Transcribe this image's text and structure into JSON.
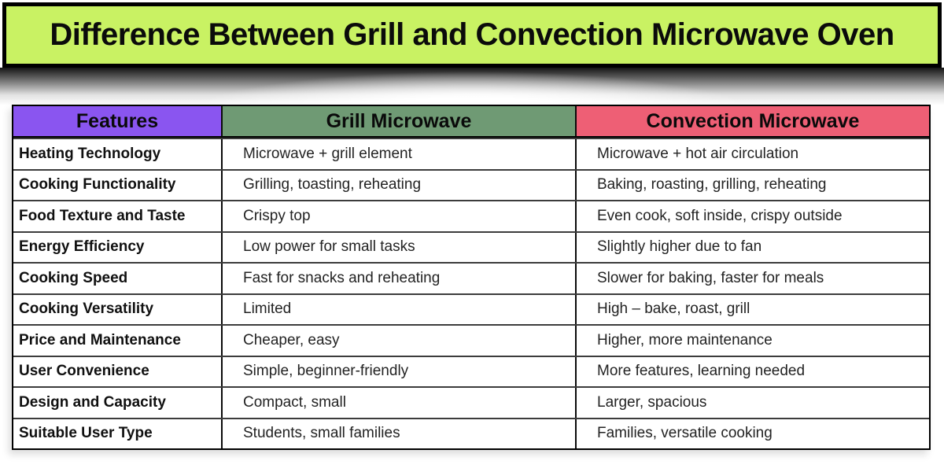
{
  "chart_data": {
    "type": "table",
    "title": "Difference Between Grill and Convection Microwave Oven",
    "columns": [
      "Features",
      "Grill Microwave",
      "Convection Microwave"
    ],
    "rows": [
      [
        "Heating Technology",
        "Microwave + grill element",
        "Microwave + hot air circulation"
      ],
      [
        "Cooking Functionality",
        "Grilling, toasting, reheating",
        "Baking, roasting, grilling, reheating"
      ],
      [
        "Food Texture and Taste",
        "Crispy top",
        "Even cook, soft inside, crispy outside"
      ],
      [
        "Energy Efficiency",
        "Low power for small tasks",
        "Slightly higher due to fan"
      ],
      [
        "Cooking Speed",
        "Fast for snacks and reheating",
        "Slower for baking, faster for meals"
      ],
      [
        "Cooking Versatility",
        "Limited",
        "High – bake, roast, grill"
      ],
      [
        "Price and Maintenance",
        "Cheaper, easy",
        "Higher, more maintenance"
      ],
      [
        "User Convenience",
        "Simple, beginner-friendly",
        "More features, learning needed"
      ],
      [
        "Design and Capacity",
        "Compact, small",
        "Larger, spacious"
      ],
      [
        "Suitable User Type",
        "Students, small families",
        "Families, versatile cooking"
      ]
    ],
    "layout": {
      "grid": "on",
      "header_position": "top"
    }
  },
  "colors": {
    "title_bg": "#c9f263",
    "title_border": "#000000",
    "features_header_bg": "#8a55f0",
    "grill_header_bg": "#6f9a74",
    "convection_header_bg": "#ee5f75",
    "table_border": "#000000"
  }
}
